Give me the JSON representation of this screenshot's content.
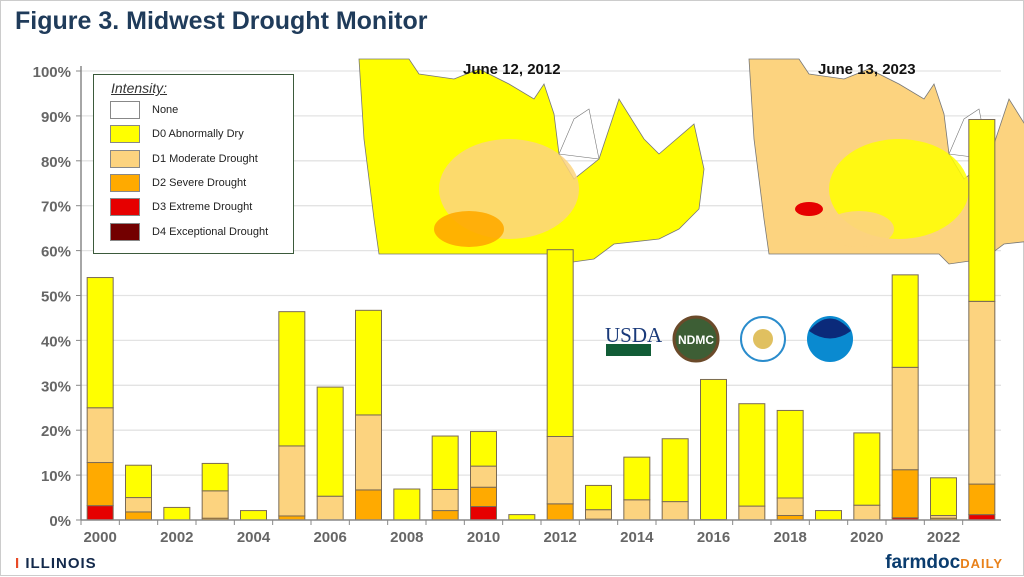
{
  "title": "Figure 3. Midwest Drought Monitor",
  "maps": [
    {
      "label": "June 12, 2012"
    },
    {
      "label": "June 13, 2023"
    }
  ],
  "logos": [
    "USDA",
    "NDMC",
    "Department of Commerce seal",
    "NOAA"
  ],
  "footer": {
    "left": "ILLINOIS",
    "right_main": "farmdoc",
    "right_accent": "DAILY"
  },
  "chart_data": {
    "type": "bar",
    "stacked": true,
    "title": "Figure 3. Midwest Drought Monitor",
    "legend_title": "Intensity:",
    "legend_placement": "top-left",
    "legend": [
      {
        "name": "None",
        "color": "#ffffff"
      },
      {
        "name": "D0 Abnormally Dry",
        "color": "#ffff00"
      },
      {
        "name": "D1 Moderate Drought",
        "color": "#fcd37f"
      },
      {
        "name": "D2 Severe Drought",
        "color": "#ffaa00"
      },
      {
        "name": "D3 Extreme Drought",
        "color": "#e60000"
      },
      {
        "name": "D4 Exceptional Drought",
        "color": "#730000"
      }
    ],
    "ylim": [
      0,
      100
    ],
    "yticks": [
      "0%",
      "10%",
      "20%",
      "30%",
      "40%",
      "50%",
      "60%",
      "70%",
      "80%",
      "90%",
      "100%"
    ],
    "xtick_labels": [
      "2000",
      "2002",
      "2004",
      "2006",
      "2008",
      "2010",
      "2012",
      "2014",
      "2016",
      "2018",
      "2020",
      "2022"
    ],
    "grid": true,
    "categories": [
      2000,
      2001,
      2002,
      2003,
      2004,
      2005,
      2006,
      2007,
      2008,
      2009,
      2010,
      2011,
      2012,
      2013,
      2014,
      2015,
      2016,
      2017,
      2018,
      2019,
      2020,
      2021,
      2022,
      2023
    ],
    "series": [
      {
        "name": "D4 Exceptional Drought",
        "color": "#730000",
        "values": [
          0,
          0,
          0,
          0,
          0,
          0,
          0,
          0,
          0,
          0,
          0,
          0,
          0,
          0,
          0,
          0,
          0,
          0,
          0,
          0,
          0,
          0,
          0,
          0
        ]
      },
      {
        "name": "D3 Extreme Drought",
        "color": "#e60000",
        "values": [
          3.2,
          0,
          0,
          0,
          0,
          0,
          0,
          0,
          0,
          0,
          3.0,
          0,
          0,
          0,
          0,
          0,
          0,
          0,
          0,
          0,
          0,
          0.5,
          0,
          1.2
        ]
      },
      {
        "name": "D2 Severe Drought",
        "color": "#ffaa00",
        "values": [
          9.6,
          1.8,
          0,
          0.4,
          0,
          0.9,
          0,
          6.7,
          0,
          2.1,
          4.3,
          0,
          3.6,
          0.2,
          0,
          0,
          0.1,
          0,
          1.0,
          0,
          0,
          10.7,
          0.4,
          6.8
        ]
      },
      {
        "name": "D1 Moderate Drought",
        "color": "#fcd37f",
        "values": [
          12.2,
          3.2,
          0,
          6.1,
          0,
          15.6,
          5.3,
          16.7,
          0,
          4.7,
          4.7,
          0,
          15.0,
          2.1,
          4.5,
          4.1,
          0,
          3.1,
          3.9,
          0,
          3.3,
          22.8,
          0.6,
          40.7
        ]
      },
      {
        "name": "D0 Abnormally Dry",
        "color": "#ffff00",
        "values": [
          29.0,
          7.2,
          2.8,
          6.1,
          2.1,
          29.9,
          24.3,
          23.3,
          6.9,
          11.9,
          7.7,
          1.2,
          41.6,
          5.4,
          9.5,
          14.0,
          31.2,
          22.8,
          19.5,
          2.1,
          16.1,
          20.6,
          8.4,
          40.5
        ]
      }
    ]
  }
}
